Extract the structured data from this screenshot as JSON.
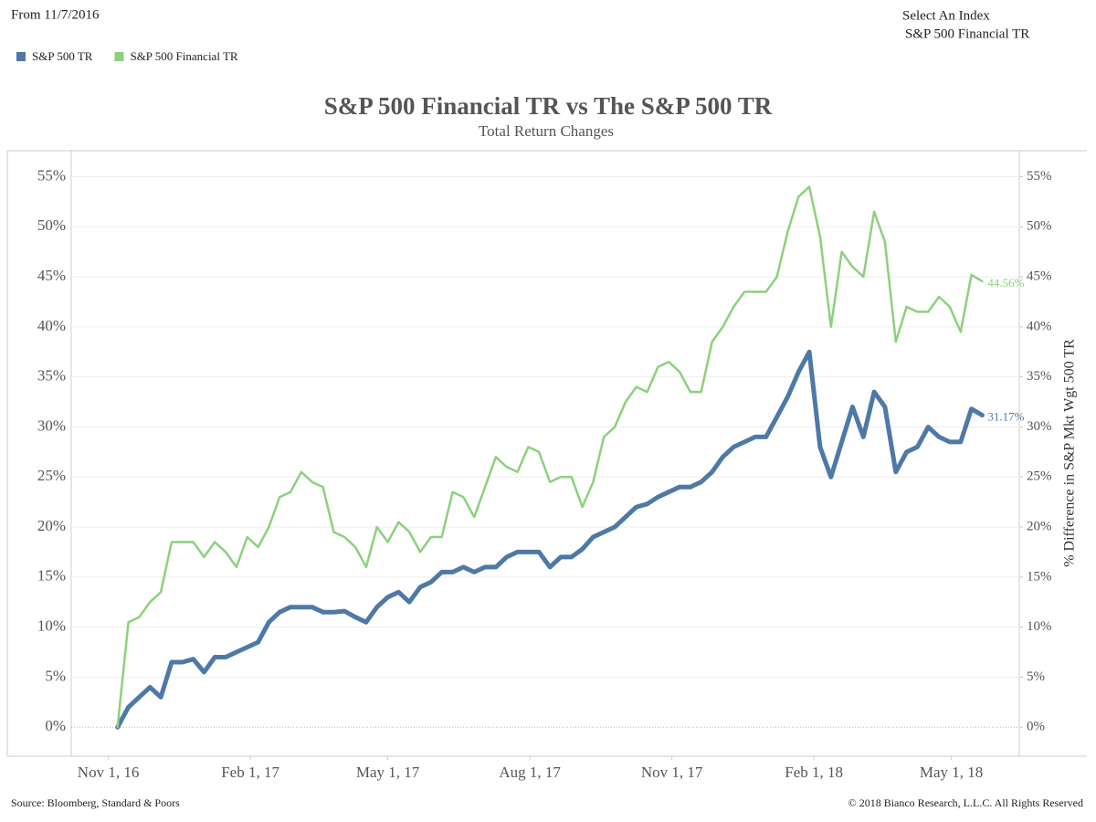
{
  "header": {
    "date_filter": "From 11/7/2016",
    "selector_label": "Select An Index",
    "selector_value": "S&P 500 Financial TR"
  },
  "footer": {
    "source": "Source: Bloomberg, Standard & Poors",
    "copyright": "© 2018 Bianco Research, L.L.C. All Rights Reserved"
  },
  "chart_data": {
    "type": "line",
    "title": "S&P 500 Financial TR vs The S&P 500 TR",
    "subtitle": "Total Return Changes",
    "y2_label": "% Difference in S&P Mkt Wgt 500 TR",
    "grid": true,
    "legend": "top-left",
    "x": [
      "2016-11-07",
      "2016-11-14",
      "2016-11-21",
      "2016-11-28",
      "2016-12-05",
      "2016-12-12",
      "2016-12-19",
      "2016-12-26",
      "2017-01-02",
      "2017-01-09",
      "2017-01-16",
      "2017-01-23",
      "2017-01-30",
      "2017-02-06",
      "2017-02-13",
      "2017-02-20",
      "2017-02-27",
      "2017-03-06",
      "2017-03-13",
      "2017-03-20",
      "2017-03-27",
      "2017-04-03",
      "2017-04-10",
      "2017-04-17",
      "2017-04-24",
      "2017-05-01",
      "2017-05-08",
      "2017-05-15",
      "2017-05-22",
      "2017-05-29",
      "2017-06-05",
      "2017-06-12",
      "2017-06-19",
      "2017-06-26",
      "2017-07-03",
      "2017-07-10",
      "2017-07-17",
      "2017-07-24",
      "2017-07-31",
      "2017-08-07",
      "2017-08-14",
      "2017-08-21",
      "2017-08-28",
      "2017-09-04",
      "2017-09-11",
      "2017-09-18",
      "2017-09-25",
      "2017-10-02",
      "2017-10-09",
      "2017-10-16",
      "2017-10-23",
      "2017-10-30",
      "2017-11-06",
      "2017-11-13",
      "2017-11-20",
      "2017-11-27",
      "2017-12-04",
      "2017-12-11",
      "2017-12-18",
      "2017-12-25",
      "2018-01-01",
      "2018-01-08",
      "2018-01-15",
      "2018-01-22",
      "2018-01-29",
      "2018-02-05",
      "2018-02-12",
      "2018-02-19",
      "2018-02-26",
      "2018-03-05",
      "2018-03-12",
      "2018-03-19",
      "2018-03-26",
      "2018-04-02",
      "2018-04-09",
      "2018-04-16",
      "2018-04-23",
      "2018-04-30",
      "2018-05-07",
      "2018-05-14",
      "2018-05-21"
    ],
    "series": [
      {
        "name": "S&P 500 TR",
        "color": "#4e79a7",
        "last_label": "31.17%",
        "values": [
          0,
          2,
          3,
          4,
          3,
          6.5,
          6.5,
          6.8,
          5.5,
          7,
          7,
          7.5,
          8,
          8.5,
          10.5,
          11.5,
          12,
          12,
          12,
          11.5,
          11.5,
          11.6,
          11,
          10.5,
          12,
          13,
          13.5,
          12.5,
          14,
          14.5,
          15.5,
          15.5,
          16,
          15.5,
          16,
          16,
          17,
          17.5,
          17.5,
          17.5,
          16,
          17,
          17,
          17.8,
          19,
          19.5,
          20,
          21,
          22,
          22.3,
          23,
          23.5,
          24,
          24,
          24.5,
          25.5,
          27,
          28,
          28.5,
          29,
          29,
          31,
          33,
          35.5,
          37.5,
          28,
          25,
          28.5,
          32,
          29,
          33.5,
          32,
          25.5,
          27.5,
          28,
          30,
          29,
          28.5,
          28.5,
          31.8,
          31.17
        ]
      },
      {
        "name": "S&P 500 Financial TR",
        "color": "#8cd17d",
        "last_label": "44.56%",
        "values": [
          0,
          10.5,
          11,
          12.5,
          13.5,
          18.5,
          18.5,
          18.5,
          17,
          18.5,
          17.5,
          16,
          19,
          18,
          20,
          23,
          23.5,
          25.5,
          24.5,
          24,
          19.5,
          19,
          18,
          16,
          20,
          18.5,
          20.5,
          19.5,
          17.5,
          19,
          19,
          23.5,
          23,
          21,
          24,
          27,
          26,
          25.5,
          28,
          27.5,
          24.5,
          25,
          25,
          22,
          24.5,
          29,
          30,
          32.5,
          34,
          33.5,
          36,
          36.5,
          35.5,
          33.5,
          33.5,
          38.5,
          40,
          42,
          43.5,
          43.5,
          43.5,
          45,
          49.5,
          53,
          54,
          49,
          40,
          47.5,
          46,
          45,
          51.5,
          48.5,
          38.5,
          42,
          41.5,
          41.5,
          43,
          42,
          39.5,
          45.2,
          44.56
        ]
      }
    ],
    "xlim": [
      "2016-10-08",
      "2018-06-14"
    ],
    "xticks": [
      {
        "value": "2016-11-01",
        "label": "Nov 1, 16"
      },
      {
        "value": "2017-02-01",
        "label": "Feb 1, 17"
      },
      {
        "value": "2017-05-01",
        "label": "May 1, 17"
      },
      {
        "value": "2017-08-01",
        "label": "Aug 1, 17"
      },
      {
        "value": "2017-11-01",
        "label": "Nov 1, 17"
      },
      {
        "value": "2018-02-01",
        "label": "Feb 1, 18"
      },
      {
        "value": "2018-05-01",
        "label": "May 1, 18"
      }
    ],
    "ylim": [
      -2.9,
      57.6
    ],
    "yticks": [
      {
        "value": 0,
        "label": "0%"
      },
      {
        "value": 5,
        "label": "5%"
      },
      {
        "value": 10,
        "label": "10%"
      },
      {
        "value": 15,
        "label": "15%"
      },
      {
        "value": 20,
        "label": "20%"
      },
      {
        "value": 25,
        "label": "25%"
      },
      {
        "value": 30,
        "label": "30%"
      },
      {
        "value": 35,
        "label": "35%"
      },
      {
        "value": 40,
        "label": "40%"
      },
      {
        "value": 45,
        "label": "45%"
      },
      {
        "value": 50,
        "label": "50%"
      },
      {
        "value": 55,
        "label": "55%"
      }
    ],
    "y2lim": [
      -2.9,
      57.6
    ],
    "y2ticks": [
      {
        "value": 0,
        "label": "0%"
      },
      {
        "value": 5,
        "label": "5%"
      },
      {
        "value": 10,
        "label": "10%"
      },
      {
        "value": 15,
        "label": "15%"
      },
      {
        "value": 20,
        "label": "20%"
      },
      {
        "value": 25,
        "label": "25%"
      },
      {
        "value": 30,
        "label": "30%"
      },
      {
        "value": 35,
        "label": "35%"
      },
      {
        "value": 40,
        "label": "40%"
      },
      {
        "value": 45,
        "label": "45%"
      },
      {
        "value": 50,
        "label": "50%"
      },
      {
        "value": 55,
        "label": "55%"
      }
    ]
  }
}
